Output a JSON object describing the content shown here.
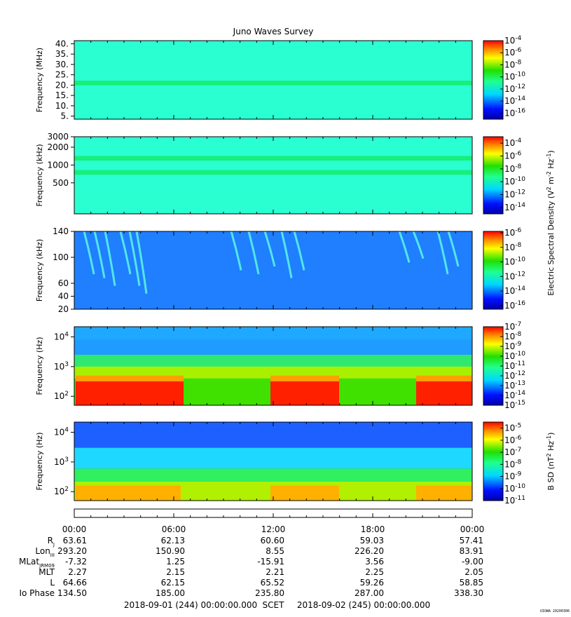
{
  "title": "Juno Waves Survey",
  "credit": "UIOWA 20200306",
  "chart_data": [
    {
      "type": "heatmap",
      "ylabel": "Frequency (MHz)",
      "yscale": "linear",
      "ylim": [
        3.5,
        41.5
      ],
      "yticks": [
        {
          "v": 5,
          "label": "5."
        },
        {
          "v": 10,
          "label": "10."
        },
        {
          "v": 15,
          "label": "15."
        },
        {
          "v": 20,
          "label": "20."
        },
        {
          "v": 25,
          "label": "25."
        },
        {
          "v": 30,
          "label": "30."
        },
        {
          "v": 35,
          "label": "35."
        },
        {
          "v": 40,
          "label": "40."
        }
      ],
      "colorbar": {
        "range_exp": [
          -17,
          -4
        ],
        "ticks": [
          {
            "v": -4,
            "label": "-4"
          },
          {
            "v": -6,
            "label": "-6"
          },
          {
            "v": -8,
            "label": "-8"
          },
          {
            "v": -10,
            "label": "-10"
          },
          {
            "v": -12,
            "label": "-12"
          },
          {
            "v": -14,
            "label": "-14"
          },
          {
            "v": -16,
            "label": "-16"
          }
        ]
      },
      "colorbar_label": "",
      "background_color": "#2affd2",
      "bands": [
        {
          "y": 21,
          "thickness": 0.06,
          "color": "#18ee7a"
        }
      ]
    },
    {
      "type": "heatmap",
      "ylabel": "Frequency (kHz)",
      "yscale": "log",
      "ylim": [
        150,
        3000
      ],
      "yticks": [
        {
          "v": 500,
          "label": "500"
        },
        {
          "v": 1000,
          "label": "1000"
        },
        {
          "v": 2000,
          "label": "2000"
        },
        {
          "v": 3000,
          "label": "3000"
        }
      ],
      "colorbar": {
        "range_exp": [
          -15,
          -3
        ],
        "ticks": [
          {
            "v": -4,
            "label": "-4"
          },
          {
            "v": -6,
            "label": "-6"
          },
          {
            "v": -8,
            "label": "-8"
          },
          {
            "v": -10,
            "label": "-10"
          },
          {
            "v": -12,
            "label": "-12"
          },
          {
            "v": -14,
            "label": "-14"
          }
        ]
      },
      "colorbar_label": "Electric Spectral Density (V",
      "colorbar_label_sup1": "2",
      "colorbar_label_mid": " m",
      "colorbar_label_sup2": "-2",
      "colorbar_label_mid2": " Hz",
      "colorbar_label_sup3": "-1",
      "colorbar_label_end": ")",
      "background_color": "#2affd2",
      "bands": [
        {
          "y": 1300,
          "thickness": 0.06,
          "color": "#18ee7a"
        },
        {
          "y": 750,
          "thickness": 0.06,
          "color": "#18ee7a"
        }
      ]
    },
    {
      "type": "heatmap",
      "ylabel": "Frequency (kHz)",
      "yscale": "linear",
      "ylim": [
        20,
        140
      ],
      "yticks": [
        {
          "v": 20,
          "label": "20"
        },
        {
          "v": 40,
          "label": "40"
        },
        {
          "v": 60,
          "label": "60"
        },
        {
          "v": 100,
          "label": "100"
        },
        {
          "v": 140,
          "label": "140"
        }
      ],
      "colorbar": {
        "range_exp": [
          -16.5,
          -5.8
        ],
        "ticks": [
          {
            "v": -6,
            "label": "-6"
          },
          {
            "v": -8,
            "label": "-8"
          },
          {
            "v": -10,
            "label": "-10"
          },
          {
            "v": -12,
            "label": "-12"
          },
          {
            "v": -14,
            "label": "-14"
          },
          {
            "v": -16,
            "label": "-16"
          }
        ]
      },
      "colorbar_label": "",
      "background_color": "#1f7fff",
      "bands": []
    },
    {
      "type": "heatmap",
      "ylabel": "Frequency (Hz)",
      "yscale": "log",
      "ylim": [
        50,
        22000
      ],
      "yticks": [
        {
          "v": 100,
          "label": "10",
          "sup": "2"
        },
        {
          "v": 1000,
          "label": "10",
          "sup": "3"
        },
        {
          "v": 10000,
          "label": "10",
          "sup": "4"
        }
      ],
      "colorbar": {
        "range_exp": [
          -15,
          -7
        ],
        "ticks": [
          {
            "v": -7,
            "label": "-7"
          },
          {
            "v": -8,
            "label": "-8"
          },
          {
            "v": -9,
            "label": "-9"
          },
          {
            "v": -10,
            "label": "-10"
          },
          {
            "v": -11,
            "label": "-11"
          },
          {
            "v": -12,
            "label": "-12"
          },
          {
            "v": -13,
            "label": "-13"
          },
          {
            "v": -14,
            "label": "-14"
          },
          {
            "v": -15,
            "label": "-15"
          }
        ]
      },
      "colorbar_label": "",
      "background_color": "#1e9cff",
      "bands": []
    },
    {
      "type": "heatmap",
      "ylabel": "Frequency (Hz)",
      "yscale": "log",
      "ylim": [
        50,
        22000
      ],
      "yticks": [
        {
          "v": 100,
          "label": "10",
          "sup": "2"
        },
        {
          "v": 1000,
          "label": "10",
          "sup": "3"
        },
        {
          "v": 10000,
          "label": "10",
          "sup": "4"
        }
      ],
      "colorbar": {
        "range_exp": [
          -11,
          -4.5
        ],
        "ticks": [
          {
            "v": -5,
            "label": "-5"
          },
          {
            "v": -6,
            "label": "-6"
          },
          {
            "v": -7,
            "label": "-7"
          },
          {
            "v": -8,
            "label": "-8"
          },
          {
            "v": -9,
            "label": "-9"
          },
          {
            "v": -10,
            "label": "-10"
          },
          {
            "v": -11,
            "label": "-11"
          }
        ]
      },
      "colorbar_label": "B SD (nT",
      "colorbar_label_sup1": "2",
      "colorbar_label_mid": " Hz",
      "colorbar_label_sup2": "-1",
      "colorbar_label_end": ")",
      "background_color": "#1e60ff",
      "bands": []
    }
  ],
  "time_axis": {
    "labels": [
      "00:00",
      "06:00",
      "12:00",
      "18:00",
      "00:00"
    ],
    "rows": [
      {
        "name": "R",
        "sub": "J",
        "values": [
          "63.61",
          "62.13",
          "60.60",
          "59.03",
          "57.41"
        ]
      },
      {
        "name": "Lon",
        "sub": "III",
        "values": [
          "293.20",
          "150.90",
          "8.55",
          "226.20",
          "83.91"
        ]
      },
      {
        "name": "MLat",
        "sub": "JRM09",
        "values": [
          "-7.32",
          "1.25",
          "-15.91",
          "3.56",
          "-9.00"
        ]
      },
      {
        "name": "MLT",
        "sub": "",
        "values": [
          "2.27",
          "2.15",
          "2.21",
          "2.25",
          "2.05"
        ]
      },
      {
        "name": "L",
        "sub": "",
        "values": [
          "64.66",
          "62.15",
          "65.52",
          "59.26",
          "58.85"
        ]
      },
      {
        "name": "Io Phase",
        "sub": "",
        "values": [
          "134.50",
          "185.00",
          "235.80",
          "287.00",
          "338.30"
        ]
      }
    ],
    "start": "2018-09-01 (244) 00:00:00.000",
    "scet": "SCET",
    "end": "2018-09-02 (245) 00:00:00.000"
  }
}
